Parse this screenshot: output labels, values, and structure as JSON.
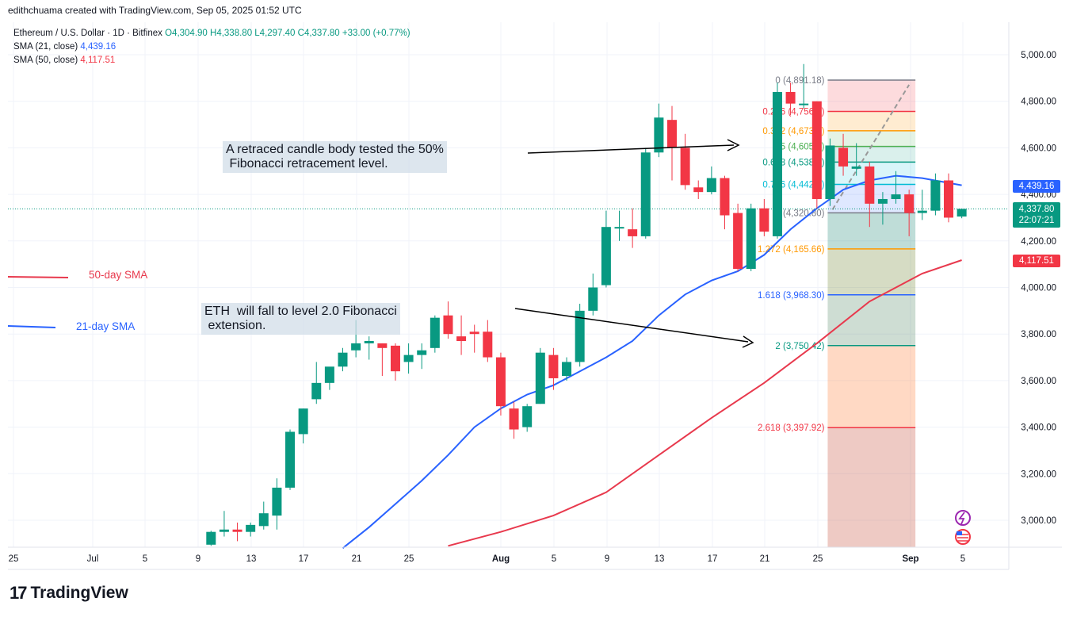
{
  "header": {
    "created_by": "edithchuama created with TradingView.com, Sep 05, 2025 01:52 UTC"
  },
  "legend": {
    "symbol": "Ethereum / U.S. Dollar · 1D · Bitfinex",
    "ohlc": "O4,304.90  H4,338.80  L4,297.40  C4,337.80  +33.00 (+0.77%)",
    "sma21_label": "SMA (21, close)",
    "sma21_value": "4,439.16",
    "sma50_label": "SMA (50, close)",
    "sma50_value": "4,117.51"
  },
  "annotations": {
    "note_top": "A retraced candle body tested the 50%\n Fibonacci retracement level.",
    "note_bottom": "ETH  will fall to level 2.0 Fibonacci\n extension.",
    "sma50_side": "50-day SMA",
    "sma21_side": "21-day SMA"
  },
  "price_tags": {
    "sma21": "4,439.16",
    "last": "4,337.80",
    "countdown": "22:07:21",
    "sma50": "4,117.51"
  },
  "brand": {
    "name": "TradingView",
    "mark": "17"
  },
  "colors": {
    "up": "#089981",
    "down": "#f23645",
    "sma21": "#2962ff",
    "sma50": "#e8394d"
  },
  "chart_data": {
    "type": "candlestick",
    "y_ticks": [
      3000,
      3200,
      3400,
      3600,
      3800,
      4000,
      4200,
      4400,
      4600,
      4800,
      5000
    ],
    "y_tick_labels": [
      "3,000.00",
      "3,200.00",
      "3,400.00",
      "3,600.00",
      "3,800.00",
      "4,000.00",
      "4,200.00",
      "4,400.00",
      "4,600.00",
      "4,800.00",
      "5,000.00"
    ],
    "x_labels": [
      "25",
      "Jul",
      "5",
      "9",
      "13",
      "17",
      "21",
      "25",
      "Aug",
      "5",
      "9",
      "13",
      "17",
      "21",
      "25",
      "Sep",
      "5"
    ],
    "candles": [
      {
        "date": "2025-07-10",
        "o": 2895,
        "h": 2955,
        "l": 2890,
        "c": 2950
      },
      {
        "date": "2025-07-11",
        "o": 2950,
        "h": 3040,
        "l": 2930,
        "c": 2960
      },
      {
        "date": "2025-07-12",
        "o": 2960,
        "h": 2990,
        "l": 2910,
        "c": 2950
      },
      {
        "date": "2025-07-13",
        "o": 2950,
        "h": 2990,
        "l": 2930,
        "c": 2980
      },
      {
        "date": "2025-07-14",
        "o": 2975,
        "h": 3080,
        "l": 2960,
        "c": 3030
      },
      {
        "date": "2025-07-15",
        "o": 3020,
        "h": 3180,
        "l": 2960,
        "c": 3140
      },
      {
        "date": "2025-07-16",
        "o": 3140,
        "h": 3390,
        "l": 3130,
        "c": 3380
      },
      {
        "date": "2025-07-17",
        "o": 3370,
        "h": 3480,
        "l": 3330,
        "c": 3480
      },
      {
        "date": "2025-07-18",
        "o": 3520,
        "h": 3680,
        "l": 3500,
        "c": 3590
      },
      {
        "date": "2025-07-19",
        "o": 3590,
        "h": 3640,
        "l": 3560,
        "c": 3660
      },
      {
        "date": "2025-07-20",
        "o": 3660,
        "h": 3740,
        "l": 3640,
        "c": 3720
      },
      {
        "date": "2025-07-21",
        "o": 3730,
        "h": 3860,
        "l": 3700,
        "c": 3760
      },
      {
        "date": "2025-07-22",
        "o": 3760,
        "h": 3790,
        "l": 3690,
        "c": 3770
      },
      {
        "date": "2025-07-23",
        "o": 3760,
        "h": 3760,
        "l": 3620,
        "c": 3740
      },
      {
        "date": "2025-07-24",
        "o": 3750,
        "h": 3760,
        "l": 3600,
        "c": 3640
      },
      {
        "date": "2025-07-25",
        "o": 3680,
        "h": 3760,
        "l": 3630,
        "c": 3710
      },
      {
        "date": "2025-07-26",
        "o": 3710,
        "h": 3760,
        "l": 3650,
        "c": 3730
      },
      {
        "date": "2025-07-27",
        "o": 3740,
        "h": 3880,
        "l": 3720,
        "c": 3870
      },
      {
        "date": "2025-07-28",
        "o": 3880,
        "h": 3940,
        "l": 3780,
        "c": 3800
      },
      {
        "date": "2025-07-29",
        "o": 3790,
        "h": 3880,
        "l": 3710,
        "c": 3770
      },
      {
        "date": "2025-07-30",
        "o": 3810,
        "h": 3840,
        "l": 3720,
        "c": 3800
      },
      {
        "date": "2025-07-31",
        "o": 3810,
        "h": 3860,
        "l": 3680,
        "c": 3700
      },
      {
        "date": "2025-08-01",
        "o": 3700,
        "h": 3720,
        "l": 3450,
        "c": 3490
      },
      {
        "date": "2025-08-02",
        "o": 3480,
        "h": 3510,
        "l": 3350,
        "c": 3390
      },
      {
        "date": "2025-08-03",
        "o": 3400,
        "h": 3500,
        "l": 3380,
        "c": 3490
      },
      {
        "date": "2025-08-04",
        "o": 3500,
        "h": 3740,
        "l": 3500,
        "c": 3720
      },
      {
        "date": "2025-08-05",
        "o": 3710,
        "h": 3740,
        "l": 3560,
        "c": 3610
      },
      {
        "date": "2025-08-06",
        "o": 3620,
        "h": 3700,
        "l": 3600,
        "c": 3680
      },
      {
        "date": "2025-08-07",
        "o": 3680,
        "h": 3930,
        "l": 3660,
        "c": 3900
      },
      {
        "date": "2025-08-08",
        "o": 3900,
        "h": 4060,
        "l": 3880,
        "c": 4000
      },
      {
        "date": "2025-08-09",
        "o": 4010,
        "h": 4330,
        "l": 4000,
        "c": 4260
      },
      {
        "date": "2025-08-10",
        "o": 4260,
        "h": 4330,
        "l": 4200,
        "c": 4260
      },
      {
        "date": "2025-08-11",
        "o": 4250,
        "h": 4340,
        "l": 4170,
        "c": 4220
      },
      {
        "date": "2025-08-12",
        "o": 4220,
        "h": 4600,
        "l": 4210,
        "c": 4580
      },
      {
        "date": "2025-08-13",
        "o": 4580,
        "h": 4790,
        "l": 4560,
        "c": 4730
      },
      {
        "date": "2025-08-14",
        "o": 4720,
        "h": 4780,
        "l": 4460,
        "c": 4600
      },
      {
        "date": "2025-08-15",
        "o": 4600,
        "h": 4660,
        "l": 4420,
        "c": 4440
      },
      {
        "date": "2025-08-16",
        "o": 4430,
        "h": 4460,
        "l": 4380,
        "c": 4410
      },
      {
        "date": "2025-08-17",
        "o": 4410,
        "h": 4520,
        "l": 4400,
        "c": 4470
      },
      {
        "date": "2025-08-18",
        "o": 4470,
        "h": 4480,
        "l": 4250,
        "c": 4310
      },
      {
        "date": "2025-08-19",
        "o": 4320,
        "h": 4360,
        "l": 4070,
        "c": 4080
      },
      {
        "date": "2025-08-20",
        "o": 4080,
        "h": 4360,
        "l": 4070,
        "c": 4340
      },
      {
        "date": "2025-08-21",
        "o": 4340,
        "h": 4380,
        "l": 4220,
        "c": 4240
      },
      {
        "date": "2025-08-22",
        "o": 4220,
        "h": 4880,
        "l": 4210,
        "c": 4840
      },
      {
        "date": "2025-08-23",
        "o": 4840,
        "h": 4880,
        "l": 4740,
        "c": 4790
      },
      {
        "date": "2025-08-24",
        "o": 4790,
        "h": 4960,
        "l": 4770,
        "c": 4790
      },
      {
        "date": "2025-08-25",
        "o": 4800,
        "h": 4800,
        "l": 4340,
        "c": 4380
      },
      {
        "date": "2025-08-26",
        "o": 4380,
        "h": 4640,
        "l": 4350,
        "c": 4610
      },
      {
        "date": "2025-08-27",
        "o": 4600,
        "h": 4660,
        "l": 4480,
        "c": 4520
      },
      {
        "date": "2025-08-28",
        "o": 4510,
        "h": 4620,
        "l": 4480,
        "c": 4520
      },
      {
        "date": "2025-08-29",
        "o": 4520,
        "h": 4540,
        "l": 4260,
        "c": 4360
      },
      {
        "date": "2025-08-30",
        "o": 4360,
        "h": 4410,
        "l": 4270,
        "c": 4380
      },
      {
        "date": "2025-08-31",
        "o": 4380,
        "h": 4500,
        "l": 4360,
        "c": 4400
      },
      {
        "date": "2025-09-01",
        "o": 4400,
        "h": 4420,
        "l": 4220,
        "c": 4320
      },
      {
        "date": "2025-09-02",
        "o": 4320,
        "h": 4420,
        "l": 4290,
        "c": 4330
      },
      {
        "date": "2025-09-03",
        "o": 4330,
        "h": 4490,
        "l": 4310,
        "c": 4460
      },
      {
        "date": "2025-09-04",
        "o": 4460,
        "h": 4490,
        "l": 4280,
        "c": 4300
      },
      {
        "date": "2025-09-05",
        "o": 4304.9,
        "h": 4338.8,
        "l": 4297.4,
        "c": 4337.8
      }
    ],
    "sma21": [
      {
        "date": "2025-07-20",
        "v": 2880
      },
      {
        "date": "2025-07-22",
        "v": 2970
      },
      {
        "date": "2025-07-24",
        "v": 3070
      },
      {
        "date": "2025-07-26",
        "v": 3170
      },
      {
        "date": "2025-07-28",
        "v": 3280
      },
      {
        "date": "2025-07-30",
        "v": 3400
      },
      {
        "date": "2025-08-01",
        "v": 3480
      },
      {
        "date": "2025-08-03",
        "v": 3540
      },
      {
        "date": "2025-08-05",
        "v": 3580
      },
      {
        "date": "2025-08-07",
        "v": 3640
      },
      {
        "date": "2025-08-09",
        "v": 3700
      },
      {
        "date": "2025-08-11",
        "v": 3770
      },
      {
        "date": "2025-08-13",
        "v": 3880
      },
      {
        "date": "2025-08-15",
        "v": 3970
      },
      {
        "date": "2025-08-17",
        "v": 4030
      },
      {
        "date": "2025-08-19",
        "v": 4070
      },
      {
        "date": "2025-08-21",
        "v": 4140
      },
      {
        "date": "2025-08-23",
        "v": 4250
      },
      {
        "date": "2025-08-25",
        "v": 4340
      },
      {
        "date": "2025-08-27",
        "v": 4420
      },
      {
        "date": "2025-08-29",
        "v": 4460
      },
      {
        "date": "2025-08-31",
        "v": 4480
      },
      {
        "date": "2025-09-02",
        "v": 4470
      },
      {
        "date": "2025-09-05",
        "v": 4439.16
      }
    ],
    "sma50": [
      {
        "date": "2025-07-28",
        "v": 2890
      },
      {
        "date": "2025-08-01",
        "v": 2950
      },
      {
        "date": "2025-08-05",
        "v": 3020
      },
      {
        "date": "2025-08-09",
        "v": 3120
      },
      {
        "date": "2025-08-13",
        "v": 3280
      },
      {
        "date": "2025-08-17",
        "v": 3440
      },
      {
        "date": "2025-08-21",
        "v": 3590
      },
      {
        "date": "2025-08-25",
        "v": 3760
      },
      {
        "date": "2025-08-29",
        "v": 3940
      },
      {
        "date": "2025-09-02",
        "v": 4060
      },
      {
        "date": "2025-09-05",
        "v": 4117.51
      }
    ],
    "fibonacci": {
      "start_date": "2025-08-26",
      "end_date": "2025-09-01",
      "levels": [
        {
          "label": "0 (4,891.18)",
          "price": 4891.18,
          "color": "#787b86"
        },
        {
          "label": "0.236 (4,756.5)",
          "price": 4756.5,
          "color": "#f23645"
        },
        {
          "label": "0.382 (4,673.3)",
          "price": 4673.3,
          "color": "#ff9800"
        },
        {
          "label": "0.5 (4,605.9)",
          "price": 4605.9,
          "color": "#4caf50"
        },
        {
          "label": "0.618 (4,538.6)",
          "price": 4538.6,
          "color": "#089981"
        },
        {
          "label": "0.786 (4,442.8)",
          "price": 4442.8,
          "color": "#00bcd4"
        },
        {
          "label": "1 (4,320.80)",
          "price": 4320.8,
          "color": "#787b86"
        },
        {
          "label": "1.272 (4,165.66)",
          "price": 4165.66,
          "color": "#ff9800"
        },
        {
          "label": "1.618 (3,968.30)",
          "price": 3968.3,
          "color": "#2962ff"
        },
        {
          "label": "2 (3,750.42)",
          "price": 3750.42,
          "color": "#089981"
        },
        {
          "label": "2.618 (3,397.92)",
          "price": 3397.92,
          "color": "#f23645"
        }
      ]
    }
  }
}
